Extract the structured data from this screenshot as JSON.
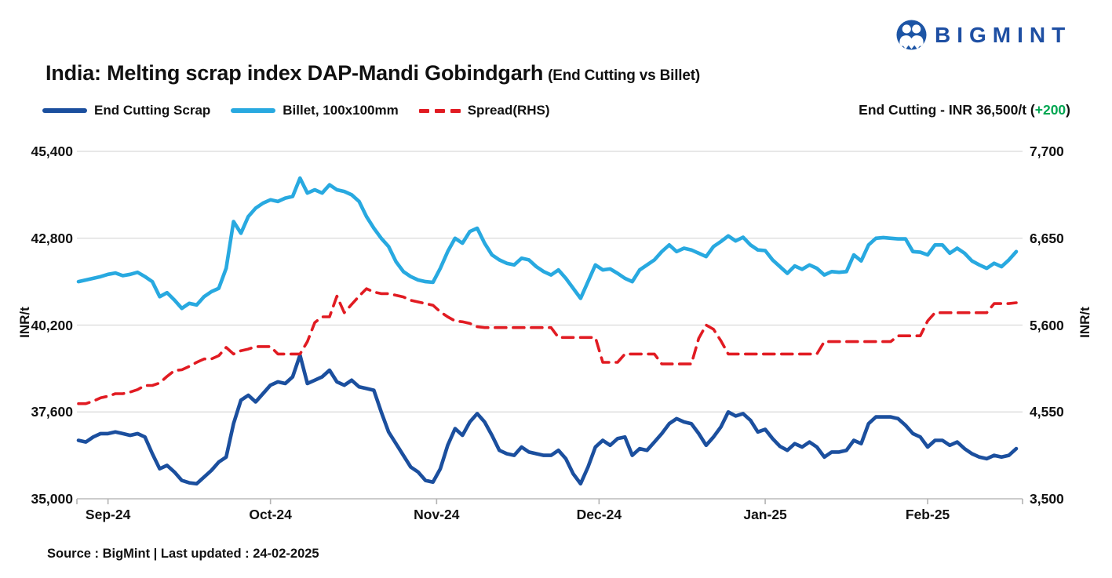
{
  "header": {
    "logo_text": "BIGMINT",
    "title": "India: Melting scrap index DAP-Mandi Gobindgarh",
    "title_suffix": "(End Cutting vs Billet)",
    "annotation": {
      "label": "End Cutting - INR 36,500/t",
      "open_paren": "(",
      "change": "+200",
      "close_paren": ")",
      "change_color": "#00a651"
    }
  },
  "legend": [
    {
      "label": "End Cutting Scrap",
      "color": "#1b4f9e",
      "style": "solid"
    },
    {
      "label": "Billet, 100x100mm",
      "color": "#28a9e0",
      "style": "solid"
    },
    {
      "label": "Spread(RHS)",
      "color": "#e11b22",
      "style": "dashed"
    }
  ],
  "footer": {
    "source": "Source : BigMint | Last updated : 24-02-2025"
  },
  "colors": {
    "scrap": "#1b4f9e",
    "billet": "#28a9e0",
    "spread": "#e11b22",
    "gain_green": "#00a651",
    "logo_blue": "#1d55a5",
    "gridline": "#d9d9d9",
    "axis_line": "#c4c4c4"
  },
  "chart_data": {
    "type": "line",
    "title": "India: Melting scrap index DAP-Mandi Gobindgarh (End Cutting vs Billet)",
    "grid": "horizontal",
    "legend_position": "top-left",
    "x_tick_labels": [
      "Sep-24",
      "Oct-24",
      "Nov-24",
      "Dec-24",
      "Jan-25",
      "Feb-25"
    ],
    "x_tick_day_index": [
      4,
      26,
      48.5,
      70.5,
      93,
      115
    ],
    "left_axis": {
      "label": "INR/t",
      "min": 35000,
      "max": 45400,
      "ticks": [
        "45,400",
        "42,800",
        "40,200",
        "37,600",
        "35,000"
      ]
    },
    "right_axis": {
      "label": "INR/t",
      "min": 3500,
      "max": 7700,
      "ticks": [
        "7,700",
        "6,650",
        "5,600",
        "4,550",
        "3,500"
      ]
    },
    "series": [
      {
        "name": "End Cutting Scrap",
        "axis": "left",
        "color": "#1b4f9e",
        "dash": false,
        "last_value_label": "INR 36,500/t",
        "last_change": "+200",
        "values": [
          36750,
          36700,
          36850,
          36950,
          36950,
          37000,
          36950,
          36900,
          36950,
          36850,
          36350,
          35900,
          36000,
          35800,
          35550,
          35480,
          35450,
          35650,
          35850,
          36100,
          36250,
          37250,
          37950,
          38100,
          37900,
          38150,
          38400,
          38500,
          38450,
          38650,
          39300,
          38450,
          38550,
          38650,
          38850,
          38500,
          38400,
          38550,
          38350,
          38300,
          38250,
          37600,
          37000,
          36650,
          36300,
          35950,
          35800,
          35550,
          35500,
          35900,
          36600,
          37100,
          36900,
          37300,
          37550,
          37300,
          36900,
          36450,
          36350,
          36300,
          36550,
          36400,
          36350,
          36300,
          36300,
          36450,
          36200,
          35750,
          35450,
          35950,
          36550,
          36750,
          36600,
          36800,
          36850,
          36300,
          36500,
          36450,
          36700,
          36950,
          37250,
          37400,
          37300,
          37250,
          36950,
          36600,
          36850,
          37150,
          37600,
          37480,
          37550,
          37350,
          37000,
          37080,
          36800,
          36570,
          36450,
          36650,
          36550,
          36700,
          36550,
          36250,
          36400,
          36400,
          36450,
          36750,
          36650,
          37250,
          37450,
          37450,
          37450,
          37400,
          37200,
          36950,
          36850,
          36550,
          36750,
          36750,
          36600,
          36700,
          36500,
          36350,
          36250,
          36200,
          36300,
          36250,
          36300,
          36500
        ]
      },
      {
        "name": "Billet, 100x100mm",
        "axis": "left",
        "color": "#28a9e0",
        "dash": false,
        "values": [
          41500,
          41550,
          41600,
          41650,
          41720,
          41760,
          41680,
          41720,
          41780,
          41650,
          41500,
          41050,
          41170,
          40950,
          40700,
          40850,
          40800,
          41050,
          41200,
          41300,
          41900,
          43300,
          42950,
          43450,
          43700,
          43850,
          43950,
          43900,
          44000,
          44050,
          44600,
          44150,
          44250,
          44150,
          44400,
          44250,
          44200,
          44100,
          43900,
          43450,
          43100,
          42800,
          42550,
          42100,
          41800,
          41650,
          41550,
          41500,
          41480,
          41900,
          42400,
          42800,
          42650,
          43000,
          43100,
          42650,
          42300,
          42150,
          42050,
          42000,
          42200,
          42150,
          41950,
          41800,
          41700,
          41850,
          41600,
          41300,
          41000,
          41500,
          42000,
          41850,
          41880,
          41750,
          41600,
          41500,
          41850,
          42000,
          42150,
          42400,
          42600,
          42400,
          42500,
          42450,
          42350,
          42250,
          42550,
          42700,
          42870,
          42720,
          42830,
          42600,
          42450,
          42430,
          42150,
          41950,
          41750,
          41970,
          41870,
          42000,
          41900,
          41700,
          41800,
          41780,
          41800,
          42300,
          42120,
          42600,
          42800,
          42820,
          42800,
          42780,
          42780,
          42400,
          42380,
          42300,
          42600,
          42600,
          42350,
          42500,
          42350,
          42120,
          42000,
          41900,
          42050,
          41950,
          42150,
          42400
        ]
      },
      {
        "name": "Spread(RHS)",
        "axis": "right",
        "color": "#e11b22",
        "dash": true,
        "values": [
          4650,
          4650,
          4680,
          4720,
          4740,
          4770,
          4770,
          4790,
          4820,
          4870,
          4870,
          4900,
          4980,
          5050,
          5060,
          5100,
          5150,
          5190,
          5190,
          5230,
          5330,
          5250,
          5290,
          5310,
          5340,
          5340,
          5340,
          5250,
          5250,
          5250,
          5250,
          5400,
          5630,
          5700,
          5700,
          5950,
          5750,
          5850,
          5950,
          6040,
          6000,
          5980,
          5980,
          5960,
          5940,
          5900,
          5880,
          5860,
          5840,
          5760,
          5700,
          5650,
          5640,
          5620,
          5580,
          5570,
          5570,
          5570,
          5570,
          5570,
          5570,
          5570,
          5570,
          5570,
          5570,
          5450,
          5450,
          5450,
          5450,
          5450,
          5450,
          5150,
          5150,
          5150,
          5250,
          5250,
          5250,
          5250,
          5250,
          5130,
          5130,
          5130,
          5130,
          5130,
          5440,
          5600,
          5550,
          5410,
          5250,
          5250,
          5250,
          5250,
          5250,
          5250,
          5250,
          5250,
          5250,
          5250,
          5250,
          5250,
          5250,
          5400,
          5400,
          5400,
          5400,
          5400,
          5400,
          5400,
          5400,
          5400,
          5400,
          5470,
          5470,
          5470,
          5470,
          5650,
          5750,
          5750,
          5750,
          5750,
          5750,
          5750,
          5750,
          5750,
          5860,
          5860,
          5860,
          5870
        ]
      }
    ]
  }
}
